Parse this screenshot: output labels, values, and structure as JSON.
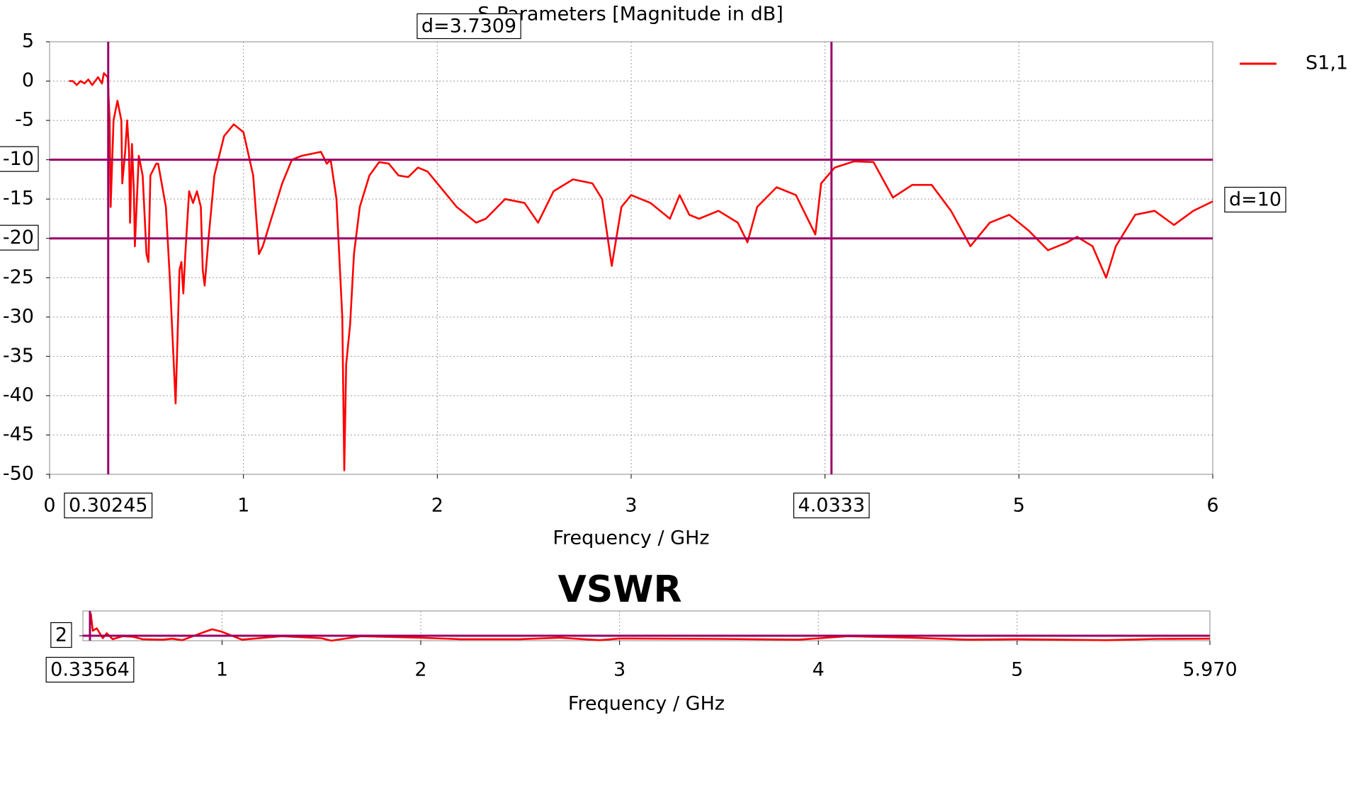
{
  "chart_data": [
    {
      "type": "line",
      "title": "S-Parameters [Magnitude in dB]",
      "x_label": "Frequency / GHz",
      "xlim": [
        0,
        6
      ],
      "xticks": [
        0,
        1,
        2,
        3,
        4,
        5,
        6
      ],
      "ylim": [
        -50,
        5
      ],
      "yticks": [
        5,
        0,
        -5,
        -10,
        -15,
        -20,
        -25,
        -30,
        -35,
        -40,
        -45,
        -50
      ],
      "grid": true,
      "legend": "right",
      "x": [
        0.1,
        0.12,
        0.14,
        0.16,
        0.18,
        0.2,
        0.22,
        0.25,
        0.27,
        0.28,
        0.3,
        0.31,
        0.315,
        0.33,
        0.35,
        0.37,
        0.375,
        0.39,
        0.4,
        0.41,
        0.415,
        0.425,
        0.435,
        0.44,
        0.46,
        0.48,
        0.5,
        0.51,
        0.52,
        0.55,
        0.56,
        0.6,
        0.62,
        0.635,
        0.65,
        0.67,
        0.68,
        0.69,
        0.7,
        0.72,
        0.74,
        0.76,
        0.78,
        0.79,
        0.8,
        0.82,
        0.85,
        0.9,
        0.95,
        1.0,
        1.05,
        1.08,
        1.1,
        1.2,
        1.25,
        1.3,
        1.4,
        1.43,
        1.45,
        1.48,
        1.51,
        1.52,
        1.53,
        1.55,
        1.57,
        1.6,
        1.65,
        1.7,
        1.75,
        1.8,
        1.85,
        1.9,
        1.95,
        2.0,
        2.1,
        2.2,
        2.25,
        2.35,
        2.45,
        2.52,
        2.6,
        2.7,
        2.8,
        2.85,
        2.9,
        2.95,
        3.0,
        3.1,
        3.2,
        3.25,
        3.3,
        3.35,
        3.45,
        3.55,
        3.6,
        3.65,
        3.75,
        3.85,
        3.92,
        3.95,
        3.98,
        4.05,
        4.15,
        4.25,
        4.35,
        4.45,
        4.55,
        4.65,
        4.75,
        4.85,
        4.95,
        5.05,
        5.15,
        5.25,
        5.3,
        5.38,
        5.45,
        5.5,
        5.6,
        5.7,
        5.8,
        5.9,
        6.0
      ],
      "series": [
        {
          "name": "S1,1",
          "color": "#ff0000",
          "values": [
            0,
            0,
            -0.5,
            0,
            -0.3,
            0.2,
            -0.5,
            0.5,
            -0.3,
            1,
            0.5,
            -5,
            -16,
            -5,
            -2.5,
            -5,
            -13,
            -9,
            -5,
            -9,
            -18,
            -8,
            -14,
            -21,
            -9.5,
            -12,
            -22,
            -23,
            -12,
            -10.5,
            -10.5,
            -16,
            -25,
            -33,
            -41,
            -24,
            -23,
            -27,
            -22,
            -14,
            -15.5,
            -14,
            -16,
            -24,
            -26,
            -20,
            -12,
            -7,
            -5.5,
            -6.5,
            -12,
            -22,
            -21,
            -13,
            -10,
            -9.5,
            -9,
            -10.5,
            -10,
            -15,
            -30,
            -49.5,
            -36,
            -31,
            -22,
            -16,
            -12,
            -10.3,
            -10.5,
            -12,
            -12.2,
            -11,
            -11.5,
            -13,
            -16,
            -18,
            -17.5,
            -15,
            -15.5,
            -18,
            -14,
            -12.5,
            -13,
            -15,
            -23.5,
            -16,
            -14.5,
            -15.5,
            -17.5,
            -14.5,
            -17,
            -17.5,
            -16.5,
            -18,
            -20.5,
            -16,
            -13.5,
            -14.5,
            -18,
            -19.5,
            -13,
            -11,
            -10.2,
            -10.3,
            -14.8,
            -13.2,
            -13.2,
            -16.5,
            -21,
            -18,
            -17,
            -19,
            -21.5,
            -20.5,
            -19.8,
            -21,
            -25,
            -21,
            -17,
            -16.5,
            -18.3,
            -16.5,
            -15.3
          ]
        }
      ],
      "x_markers": [
        0.30245,
        4.0333
      ],
      "y_markers": [
        -10,
        -20
      ],
      "marker_color": "#990066",
      "annotations": [
        "d=3.7309",
        "d=10"
      ]
    },
    {
      "type": "line",
      "title": "VSWR",
      "x_label": "Frequency / GHz",
      "xlim": [
        0.3,
        5.97
      ],
      "xticks": [
        1,
        2,
        3,
        4,
        5,
        {
          "value": 5.97,
          "label": "5.970"
        }
      ],
      "ylim": [
        1,
        7
      ],
      "yticks": [
        2
      ],
      "grid": true,
      "x": [
        0.34,
        0.35,
        0.37,
        0.4,
        0.42,
        0.45,
        0.5,
        0.55,
        0.6,
        0.7,
        0.75,
        0.8,
        0.9,
        0.95,
        1.0,
        1.1,
        1.3,
        1.5,
        1.55,
        1.7,
        2.0,
        2.2,
        2.5,
        2.7,
        2.9,
        3.0,
        3.5,
        3.9,
        4.15,
        4.5,
        4.75,
        5.0,
        5.45,
        5.7,
        5.97
      ],
      "series": [
        {
          "color": "#ff0000",
          "values": [
            6.5,
            3,
            3.5,
            1.5,
            2.5,
            1.3,
            1.9,
            1.8,
            1.3,
            1.2,
            1.4,
            1.1,
            2.6,
            3.3,
            2.8,
            1.2,
            1.9,
            1.5,
            1.0,
            1.9,
            1.6,
            1.3,
            1.3,
            1.6,
            1.1,
            1.45,
            1.35,
            1.2,
            1.9,
            1.55,
            1.2,
            1.3,
            1.1,
            1.35,
            1.4
          ]
        }
      ],
      "x_markers": [
        0.33564
      ],
      "y_markers": [
        2
      ],
      "marker_color": "#990066"
    }
  ]
}
